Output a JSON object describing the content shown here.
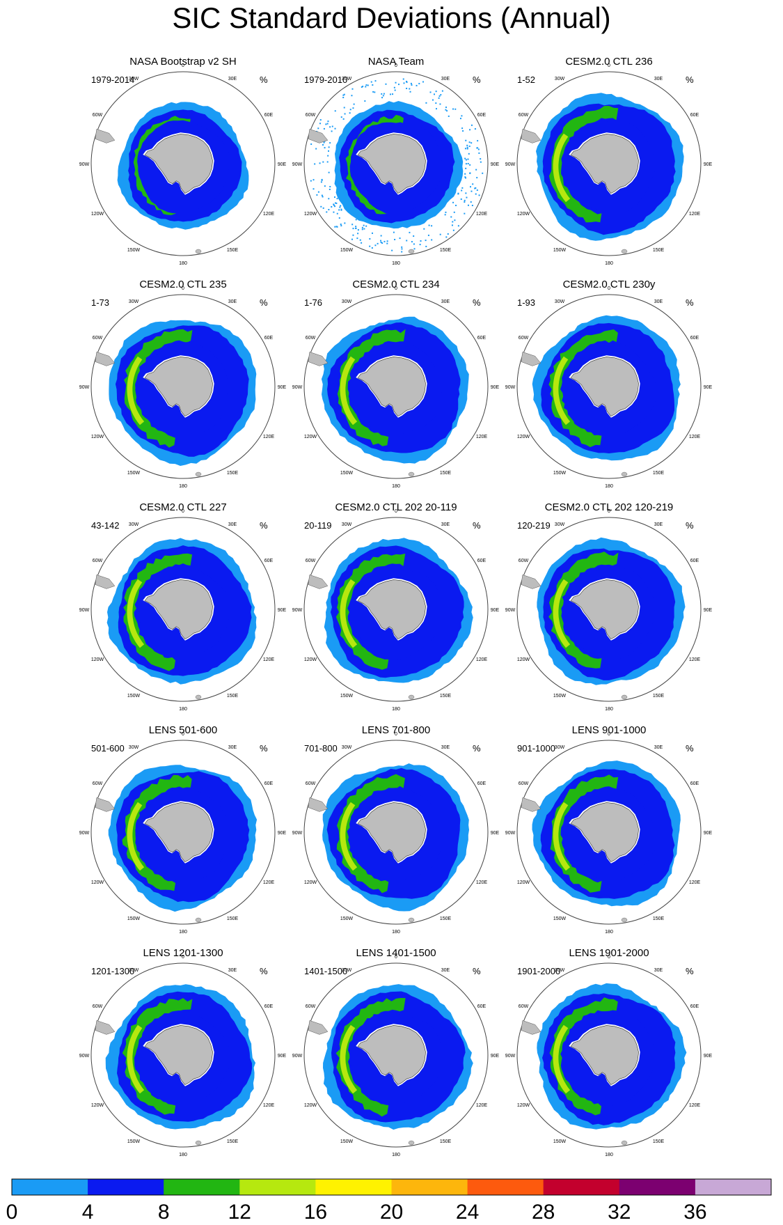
{
  "title": "SIC Standard Deviations (Annual)",
  "unit": "%",
  "panels": [
    {
      "name": "NASA Bootstrap v2 SH",
      "period": "1979-2014"
    },
    {
      "name": "NASA Team",
      "period": "1979-2010"
    },
    {
      "name": "CESM2.0 CTL 236",
      "period": "1-52"
    },
    {
      "name": "CESM2.0 CTL 235",
      "period": "1-73"
    },
    {
      "name": "CESM2.0 CTL 234",
      "period": "1-76"
    },
    {
      "name": "CESM2.0 CTL 230y",
      "period": "1-93"
    },
    {
      "name": "CESM2.0 CTL 227",
      "period": "43-142"
    },
    {
      "name": "CESM2.0 CTL 202 20-119",
      "period": "20-119"
    },
    {
      "name": "CESM2.0 CTL 202 120-219",
      "period": "120-219"
    },
    {
      "name": "LENS 501-600",
      "period": "501-600"
    },
    {
      "name": "LENS 701-800",
      "period": "701-800"
    },
    {
      "name": "LENS 901-1000",
      "period": "901-1000"
    },
    {
      "name": "LENS 1201-1300",
      "period": "1201-1300"
    },
    {
      "name": "LENS 1401-1500",
      "period": "1401-1500"
    },
    {
      "name": "LENS 1901-2000",
      "period": "1901-2000"
    }
  ],
  "longitude_labels": [
    "0",
    "30E",
    "60E",
    "90E",
    "120E",
    "150E",
    "180",
    "150W",
    "120W",
    "90W",
    "60W",
    "30W"
  ],
  "colorbar": {
    "ticks": [
      "0",
      "4",
      "8",
      "12",
      "16",
      "20",
      "24",
      "28",
      "32",
      "36"
    ],
    "colors": [
      "#1a9bf5",
      "#0a1af0",
      "#22b612",
      "#b6e80f",
      "#fff200",
      "#fdb60c",
      "#fd5a0e",
      "#c3002d",
      "#7c0070",
      "#c8a8d6"
    ]
  },
  "map_colors": {
    "land": "#bdbdbd",
    "ice_shelf": "#ffffff",
    "coast": "#333333"
  }
}
